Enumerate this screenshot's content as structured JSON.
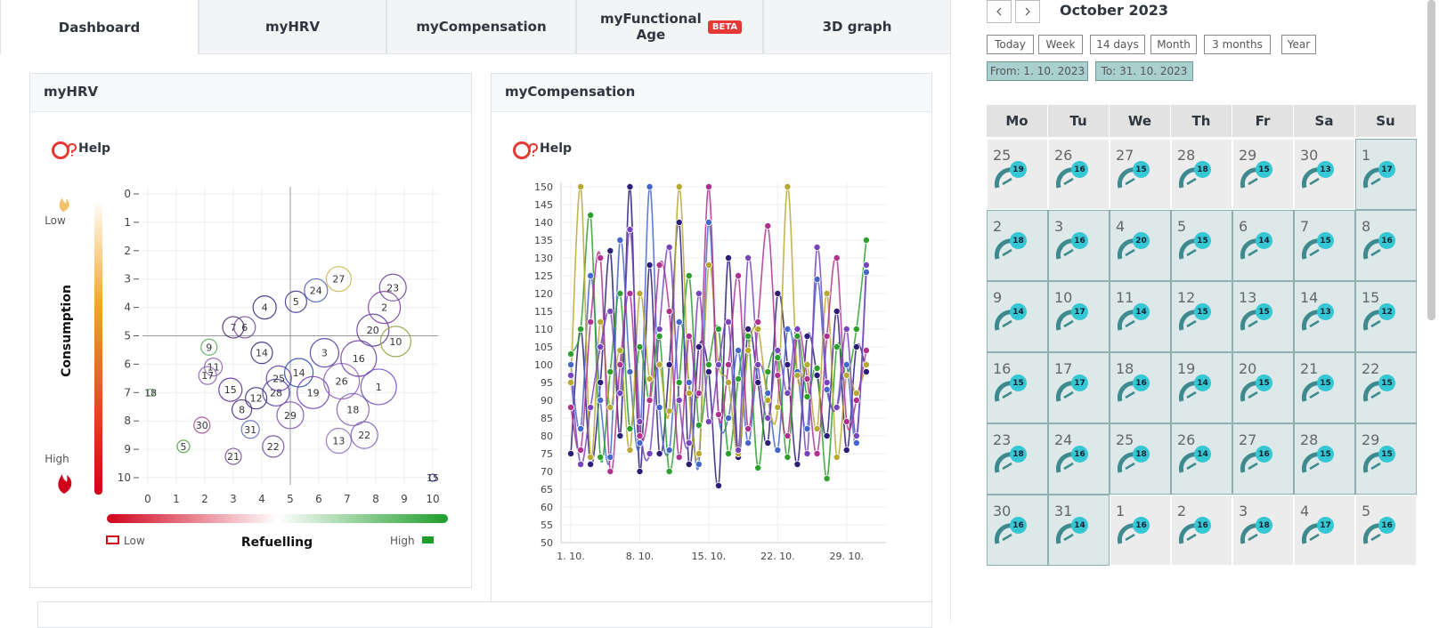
{
  "tabs": [
    {
      "label": "Dashboard",
      "active": true
    },
    {
      "label": "myHRV"
    },
    {
      "label": "myCompensation"
    },
    {
      "label": "myFunctional Age",
      "badge": "BETA"
    },
    {
      "label": "3D graph"
    }
  ],
  "panels": {
    "hrv": {
      "title": "myHRV",
      "help": "Help"
    },
    "compensation": {
      "title": "myCompensation",
      "help": "Help"
    }
  },
  "hrv_chart": {
    "type": "bubble",
    "y_label": "Consumption",
    "y_low": "Low",
    "y_high": "High",
    "x_label": "Refuelling",
    "x_low": "Low",
    "x_high": "High",
    "xlim": [
      0,
      10
    ],
    "ylim": [
      0,
      10
    ],
    "y_inverted": true,
    "xticks": [
      0,
      1,
      2,
      3,
      4,
      5,
      6,
      7,
      8,
      9,
      10
    ],
    "yticks": [
      0,
      1,
      2,
      3,
      4,
      5,
      6,
      7,
      8,
      9,
      10
    ],
    "reference_x": 5,
    "reference_y": 5,
    "grid": true,
    "x": [
      4.1,
      5.2,
      5.9,
      6.7,
      2.15,
      3.0,
      3.4,
      2.3,
      2.1,
      1.9,
      1.25,
      3.0,
      4.4,
      6.7,
      7.6,
      0.1,
      10.0,
      3.3,
      3.8,
      4.5,
      4.6,
      5.3,
      5.8,
      6.2,
      6.8,
      7.4,
      7.9,
      8.3,
      8.7,
      8.1,
      8.6,
      5.0,
      3.6,
      2.9,
      7.2,
      4.0
    ],
    "y": [
      4.0,
      3.8,
      3.4,
      3.0,
      5.4,
      4.7,
      4.7,
      6.1,
      6.4,
      8.15,
      8.9,
      9.25,
      8.9,
      8.7,
      8.5,
      7.0,
      10.0,
      7.6,
      7.2,
      7.0,
      6.5,
      6.3,
      7.0,
      5.6,
      6.6,
      5.8,
      4.8,
      4.0,
      5.2,
      6.8,
      3.3,
      7.8,
      8.3,
      6.9,
      7.6,
      5.6
    ],
    "sizes": [
      13,
      12,
      13,
      14,
      9,
      12,
      12,
      10,
      10,
      9,
      7,
      9,
      12,
      14,
      15,
      4,
      4,
      11,
      12,
      15,
      14,
      16,
      18,
      16,
      20,
      20,
      18,
      18,
      17,
      20,
      15,
      15,
      10,
      13,
      18,
      12
    ],
    "labels": [
      "4",
      "5",
      "24",
      "27",
      "9",
      "7",
      "6",
      "11",
      "17",
      "30",
      "5",
      "21",
      "22",
      "13",
      "22",
      "18",
      "15",
      "8",
      "12",
      "28",
      "25",
      "14",
      "19",
      "3",
      "26",
      "16",
      "20",
      "2",
      "10",
      "1",
      "23",
      "29",
      "31",
      "15",
      "18",
      "14"
    ],
    "colors": [
      "#3a2a80",
      "#4a3a90",
      "#5060c0",
      "#c8b850",
      "#58b058",
      "#503070",
      "#7050a0",
      "#9060b0",
      "#9060b0",
      "#a05090",
      "#58a040",
      "#7050a0",
      "#7050a0",
      "#9070c0",
      "#8060c0",
      "#60b060",
      "#3030a0",
      "#503080",
      "#402a80",
      "#5040a0",
      "#6040b0",
      "#3050b0",
      "#7040b0",
      "#5040a0",
      "#9060c0",
      "#7040a0",
      "#6040a0",
      "#8040a0",
      "#90a040",
      "#7050c0",
      "#7040a0",
      "#8050b0",
      "#6070c0",
      "#6030a0",
      "#8060b0",
      "#402a80"
    ]
  },
  "compensation_chart": {
    "type": "line",
    "xlim": [
      0,
      33
    ],
    "ylim": [
      50,
      150
    ],
    "xticks": [
      {
        "value": 1,
        "label": "1. 10."
      },
      {
        "value": 8,
        "label": "8. 10."
      },
      {
        "value": 15,
        "label": "15. 10."
      },
      {
        "value": 22,
        "label": "22. 10."
      },
      {
        "value": 29,
        "label": "29. 10."
      }
    ],
    "yticks": [
      50,
      55,
      60,
      65,
      70,
      75,
      80,
      85,
      90,
      95,
      100,
      105,
      110,
      115,
      120,
      125,
      130,
      135,
      140,
      145,
      150
    ],
    "grid": true,
    "x": [
      1,
      2,
      3,
      4,
      5,
      6,
      7,
      8,
      9,
      10,
      11,
      12,
      13,
      14,
      15,
      16,
      17,
      18,
      19,
      20,
      21,
      22,
      23,
      24,
      25,
      26,
      27,
      28,
      29,
      30,
      31
    ],
    "series": [
      {
        "color": "#2b1d78",
        "values": [
          75,
          110,
          72,
          95,
          132,
          80,
          150,
          70,
          128,
          75,
          100,
          140,
          72,
          105,
          98,
          66,
          130,
          74,
          110,
          95,
          78,
          120,
          100,
          72,
          108,
          97,
          80,
          115,
          76,
          105,
          98
        ]
      },
      {
        "color": "#4466cc",
        "values": [
          100,
          82,
          125,
          90,
          74,
          135,
          98,
          78,
          150,
          88,
          76,
          112,
          95,
          72,
          140,
          86,
          85,
          104,
          78,
          100,
          92,
          76,
          110,
          98,
          82,
          124,
          93,
          88,
          100,
          78,
          126
        ]
      },
      {
        "color": "#2ca02c",
        "values": [
          103,
          110,
          142,
          74,
          98,
          120,
          82,
          105,
          90,
          108,
          70,
          95,
          125,
          83,
          100,
          110,
          75,
          96,
          108,
          71,
          98,
          102,
          74,
          108,
          91,
          99,
          68,
          105,
          97,
          110,
          135
        ]
      },
      {
        "color": "#b8a830",
        "values": [
          95,
          150,
          74,
          112,
          88,
          104,
          76,
          120,
          96,
          100,
          87,
          150,
          92,
          75,
          128,
          100,
          95,
          75,
          104,
          110,
          90,
          88,
          150,
          97,
          100,
          82,
          120,
          74,
          97,
          92,
          100
        ]
      },
      {
        "color": "#b03090",
        "values": [
          88,
          76,
          112,
          130,
          70,
          100,
          120,
          80,
          90,
          128,
          115,
          74,
          108,
          92,
          150,
          86,
          100,
          125,
          82,
          112,
          139,
          97,
          80,
          110,
          96,
          75,
          108,
          130,
          84,
          90,
          104
        ]
      },
      {
        "color": "#7744bb",
        "values": [
          97,
          72,
          88,
          105,
          115,
          92,
          138,
          84,
          75,
          110,
          133,
          90,
          78,
          120,
          84,
          100,
          112,
          76,
          130,
          100,
          85,
          104,
          92,
          110,
          75,
          133,
          95,
          88,
          110,
          80,
          128
        ]
      }
    ]
  },
  "calendar": {
    "title": "October 2023",
    "ranges": [
      "Today",
      "Week",
      "14 days",
      "Month",
      "3 months",
      "Year"
    ],
    "from": "From: 1. 10. 2023",
    "to": "To: 31. 10. 2023",
    "weekdays": [
      "Mo",
      "Tu",
      "We",
      "Th",
      "Fr",
      "Sa",
      "Su"
    ],
    "weeks": [
      [
        {
          "day": 25,
          "score": 19
        },
        {
          "day": 26,
          "score": 16
        },
        {
          "day": 27,
          "score": 15
        },
        {
          "day": 28,
          "score": 18
        },
        {
          "day": 29,
          "score": 15
        },
        {
          "day": 30,
          "score": 13
        },
        {
          "day": 1,
          "score": 17,
          "in_month": true
        }
      ],
      [
        {
          "day": 2,
          "score": 18,
          "in_month": true
        },
        {
          "day": 3,
          "score": 16,
          "in_month": true
        },
        {
          "day": 4,
          "score": 20,
          "in_month": true
        },
        {
          "day": 5,
          "score": 15,
          "in_month": true
        },
        {
          "day": 6,
          "score": 14,
          "in_month": true
        },
        {
          "day": 7,
          "score": 15,
          "in_month": true
        },
        {
          "day": 8,
          "score": 16,
          "in_month": true
        }
      ],
      [
        {
          "day": 9,
          "score": 14,
          "in_month": true
        },
        {
          "day": 10,
          "score": 17,
          "in_month": true
        },
        {
          "day": 11,
          "score": 14,
          "in_month": true
        },
        {
          "day": 12,
          "score": 15,
          "in_month": true
        },
        {
          "day": 13,
          "score": 15,
          "in_month": true
        },
        {
          "day": 14,
          "score": 13,
          "in_month": true
        },
        {
          "day": 15,
          "score": 12,
          "in_month": true
        }
      ],
      [
        {
          "day": 16,
          "score": 15,
          "in_month": true
        },
        {
          "day": 17,
          "score": 17,
          "in_month": true
        },
        {
          "day": 18,
          "score": 16,
          "in_month": true
        },
        {
          "day": 19,
          "score": 14,
          "in_month": true
        },
        {
          "day": 20,
          "score": 15,
          "in_month": true
        },
        {
          "day": 21,
          "score": 15,
          "in_month": true
        },
        {
          "day": 22,
          "score": 15,
          "in_month": true
        }
      ],
      [
        {
          "day": 23,
          "score": 18,
          "in_month": true
        },
        {
          "day": 24,
          "score": 16,
          "in_month": true
        },
        {
          "day": 25,
          "score": 18,
          "in_month": true
        },
        {
          "day": 26,
          "score": 14,
          "in_month": true
        },
        {
          "day": 27,
          "score": 16,
          "in_month": true
        },
        {
          "day": 28,
          "score": 15,
          "in_month": true
        },
        {
          "day": 29,
          "score": 15,
          "in_month": true
        }
      ],
      [
        {
          "day": 30,
          "score": 16,
          "in_month": true
        },
        {
          "day": 31,
          "score": 14,
          "in_month": true
        },
        {
          "day": 1,
          "score": 16
        },
        {
          "day": 2,
          "score": 16
        },
        {
          "day": 3,
          "score": 18
        },
        {
          "day": 4,
          "score": 17
        },
        {
          "day": 5,
          "score": 16
        }
      ]
    ]
  }
}
